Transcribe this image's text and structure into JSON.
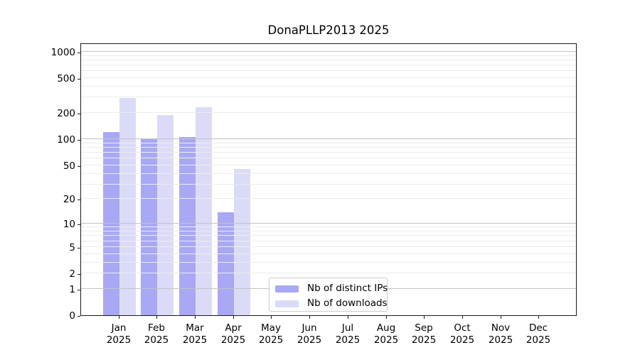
{
  "title": "DonaPLLP2013 2025",
  "chart_data": {
    "type": "bar",
    "title": "DonaPLLP2013 2025",
    "yscale": "log10(1+value)",
    "ylim": [
      0,
      1230
    ],
    "grid": "horizontal, drawn over bars",
    "legend_position": "inside lower-center",
    "categories": [
      {
        "month": "Jan",
        "year": "2025"
      },
      {
        "month": "Feb",
        "year": "2025"
      },
      {
        "month": "Mar",
        "year": "2025"
      },
      {
        "month": "Apr",
        "year": "2025"
      },
      {
        "month": "May",
        "year": "2025"
      },
      {
        "month": "Jun",
        "year": "2025"
      },
      {
        "month": "Jul",
        "year": "2025"
      },
      {
        "month": "Aug",
        "year": "2025"
      },
      {
        "month": "Sep",
        "year": "2025"
      },
      {
        "month": "Oct",
        "year": "2025"
      },
      {
        "month": "Nov",
        "year": "2025"
      },
      {
        "month": "Dec",
        "year": "2025"
      }
    ],
    "series": [
      {
        "name": "Nb of distinct IPs",
        "color": "#a8a8f4",
        "values": [
          120,
          102,
          107,
          14,
          0,
          0,
          0,
          0,
          0,
          0,
          0,
          0
        ]
      },
      {
        "name": "Nb of downloads",
        "color": "#dbdbf8",
        "values": [
          295,
          188,
          233,
          45,
          0,
          0,
          0,
          0,
          0,
          0,
          0,
          0
        ]
      }
    ],
    "y_ticks": [
      0,
      1,
      2,
      5,
      10,
      20,
      50,
      100,
      200,
      500,
      1000
    ],
    "gridlines_major": [
      1,
      10,
      100,
      1000
    ],
    "gridlines_minor": [
      2,
      3,
      4,
      5,
      6,
      7,
      8,
      9,
      20,
      30,
      40,
      50,
      60,
      70,
      80,
      90,
      200,
      300,
      400,
      500,
      600,
      700,
      800,
      900
    ]
  },
  "colors": {
    "grid_major": "#c3c3c3",
    "grid_minor": "#ececec",
    "spine": "#1a1a1a",
    "text": "#000000",
    "legend_border": "#cccccc"
  }
}
